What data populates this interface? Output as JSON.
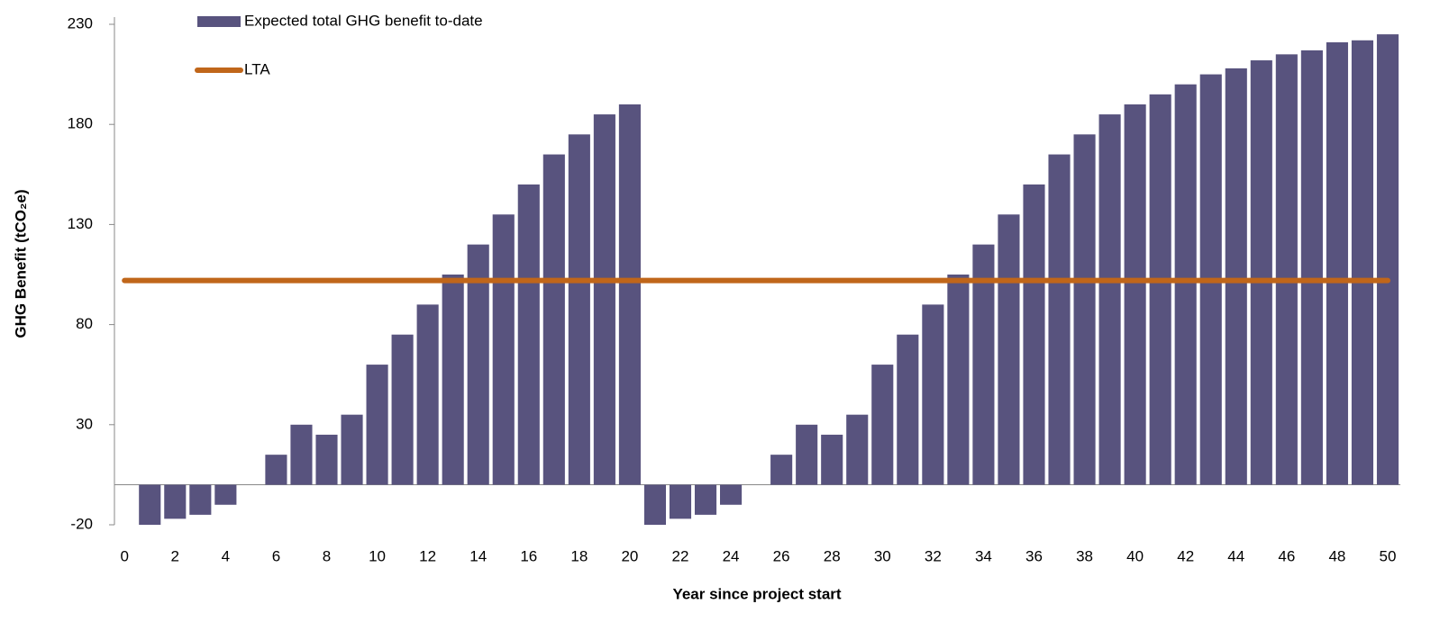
{
  "chart_data": {
    "type": "bar",
    "x": [
      0,
      1,
      2,
      3,
      4,
      5,
      6,
      7,
      8,
      9,
      10,
      11,
      12,
      13,
      14,
      15,
      16,
      17,
      18,
      19,
      20,
      21,
      22,
      23,
      24,
      25,
      26,
      27,
      28,
      29,
      30,
      31,
      32,
      33,
      34,
      35,
      36,
      37,
      38,
      39,
      40,
      41,
      42,
      43,
      44,
      45,
      46,
      47,
      48,
      49,
      50
    ],
    "series": [
      {
        "name": "Expected total GHG benefit to-date",
        "type": "bar",
        "color": "#58537e",
        "values": [
          0,
          -20,
          -17,
          -15,
          -10,
          0,
          15,
          30,
          25,
          35,
          60,
          75,
          90,
          105,
          120,
          135,
          150,
          165,
          175,
          185,
          190,
          -20,
          -17,
          -15,
          -10,
          0,
          15,
          30,
          25,
          35,
          60,
          75,
          90,
          105,
          120,
          135,
          150,
          165,
          175,
          185,
          190,
          195,
          200,
          205,
          208,
          212,
          215,
          217,
          221,
          222,
          225
        ]
      },
      {
        "name": "LTA",
        "type": "line",
        "color": "#c0661a",
        "values": [
          102,
          102,
          102,
          102,
          102,
          102,
          102,
          102,
          102,
          102,
          102,
          102,
          102,
          102,
          102,
          102,
          102,
          102,
          102,
          102,
          102,
          102,
          102,
          102,
          102,
          102,
          102,
          102,
          102,
          102,
          102,
          102,
          102,
          102,
          102,
          102,
          102,
          102,
          102,
          102,
          102,
          102,
          102,
          102,
          102,
          102,
          102,
          102,
          102,
          102,
          102
        ]
      }
    ],
    "xlabel": "Year since project start",
    "ylabel": "GHG Benefit (tCO₂e)",
    "xlim": [
      -0.4,
      50.5
    ],
    "xticks": [
      0,
      2,
      4,
      6,
      8,
      10,
      12,
      14,
      16,
      18,
      20,
      22,
      24,
      26,
      28,
      30,
      32,
      34,
      36,
      38,
      40,
      42,
      44,
      46,
      48,
      50
    ],
    "ylim": [
      -20,
      230
    ],
    "yticks": [
      -20,
      30,
      80,
      130,
      180,
      230
    ],
    "legend": "top-left"
  }
}
